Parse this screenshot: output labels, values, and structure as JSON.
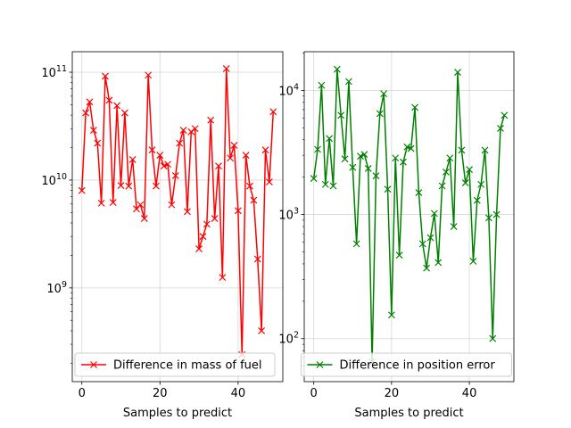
{
  "chart_data": [
    {
      "type": "line",
      "xlabel": "Samples to predict",
      "ylabel": "",
      "yscale": "log",
      "xlim": [
        -2.45,
        51.45
      ],
      "ylim": [
        135000000.0,
        155000000000.0
      ],
      "xticks": [
        0,
        20,
        40
      ],
      "xtick_labels": [
        "0",
        "20",
        "40"
      ],
      "yticks": [
        1000000000.0,
        10000000000.0,
        100000000000.0
      ],
      "ytick_labels": [
        "10^9",
        "10^10",
        "10^11"
      ],
      "grid": true,
      "legend": "lower-center",
      "series": [
        {
          "name": "Difference in mass of fuel",
          "color": "#ff0000",
          "marker": "x",
          "x": [
            0,
            1,
            2,
            3,
            4,
            5,
            6,
            7,
            8,
            9,
            10,
            11,
            12,
            13,
            14,
            15,
            16,
            17,
            18,
            19,
            20,
            21,
            22,
            23,
            24,
            25,
            26,
            27,
            28,
            29,
            30,
            31,
            32,
            33,
            34,
            35,
            36,
            37,
            38,
            39,
            40,
            41,
            42,
            43,
            44,
            45,
            46,
            47,
            48,
            49
          ],
          "y": [
            8000000000.0,
            42000000000.0,
            53000000000.0,
            29000000000.0,
            22000000000.0,
            6100000000.0,
            92000000000.0,
            55000000000.0,
            6200000000.0,
            49000000000.0,
            8900000000.0,
            42000000000.0,
            8800000000.0,
            15500000000.0,
            5400000000.0,
            5900000000.0,
            4400000000.0,
            94000000000.0,
            19000000000.0,
            8800000000.0,
            17000000000.0,
            13500000000.0,
            14000000000.0,
            5900000000.0,
            11000000000.0,
            22000000000.0,
            29000000000.0,
            5100000000.0,
            28000000000.0,
            30000000000.0,
            2300000000.0,
            3000000000.0,
            3900000000.0,
            36000000000.0,
            4400000000.0,
            13500000000.0,
            1250000000.0,
            108000000000.0,
            16000000000.0,
            21000000000.0,
            5200000000.0,
            240000000.0,
            17000000000.0,
            8800000000.0,
            6500000000.0,
            1850000000.0,
            400000000.0,
            19000000000.0,
            9600000000.0,
            43000000000.0
          ]
        }
      ]
    },
    {
      "type": "line",
      "xlabel": "Samples to predict",
      "ylabel": "",
      "yscale": "log",
      "xlim": [
        -2.45,
        51.45
      ],
      "ylim": [
        45,
        20500
      ],
      "xticks": [
        0,
        20,
        40
      ],
      "xtick_labels": [
        "0",
        "20",
        "40"
      ],
      "yticks": [
        100,
        1000,
        10000
      ],
      "ytick_labels": [
        "10^2",
        "10^3",
        "10^4"
      ],
      "grid": true,
      "legend": "lower-center",
      "series": [
        {
          "name": "Difference in position error",
          "color": "#008000",
          "marker": "x",
          "x": [
            0,
            1,
            2,
            3,
            4,
            5,
            6,
            7,
            8,
            9,
            10,
            11,
            12,
            13,
            14,
            15,
            16,
            17,
            18,
            19,
            20,
            21,
            22,
            23,
            24,
            25,
            26,
            27,
            28,
            29,
            30,
            31,
            32,
            33,
            34,
            35,
            36,
            37,
            38,
            39,
            40,
            41,
            42,
            43,
            44,
            45,
            46,
            47,
            48,
            49
          ],
          "y": [
            1950,
            3350,
            11000,
            1750,
            4100,
            1700,
            14800,
            6300,
            2800,
            11800,
            2400,
            580,
            2950,
            3050,
            2350,
            65,
            2050,
            6500,
            9400,
            1600,
            155,
            2850,
            470,
            2650,
            3500,
            3400,
            7300,
            1500,
            580,
            370,
            650,
            1020,
            410,
            1700,
            2200,
            2850,
            800,
            14000,
            3300,
            1800,
            2300,
            420,
            1300,
            1750,
            3300,
            940,
            100,
            1000,
            4950,
            6300
          ]
        }
      ]
    }
  ]
}
